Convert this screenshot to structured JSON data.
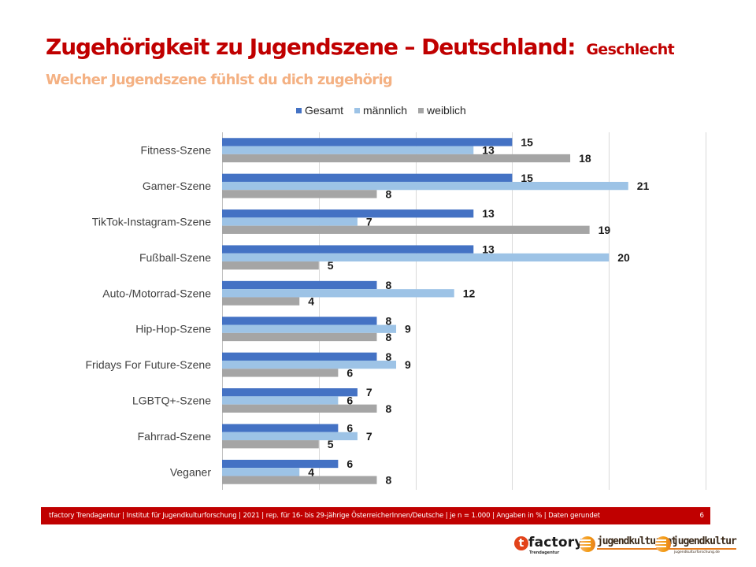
{
  "slide": {
    "title": "Zugehörigkeit zu Jugendszene – Deutschland:",
    "title_suffix": "Geschlecht",
    "subtitle": "Welcher Jugendszene fühlst du dich zugehörig",
    "footer_text": "tfactory Trendagentur | Institut für Jugendkulturforschung | 2021 | rep. für 16- bis 29-jährige ÖsterreicherInnen/Deutsche | je n = 1.000 | Angaben in % | Daten gerundet",
    "page_number": "6",
    "colors": {
      "title": "#C00000",
      "subtitle": "#F4B183",
      "footer_bg": "#C00000"
    }
  },
  "logos": {
    "tfactory": {
      "initial": "t",
      "name": "factory",
      "tagline": "Trendagentur"
    },
    "jugendkultur_at": {
      "name": "jugendkultur.at"
    },
    "jugendkultur_de": {
      "name": "jugendkultur",
      "tagline": "jugendkulturforschung.de"
    }
  },
  "chart_data": {
    "type": "bar",
    "orientation": "horizontal",
    "title": "",
    "xlabel": "",
    "ylabel": "",
    "xlim": [
      0,
      25
    ],
    "x_gridlines": [
      0,
      5,
      10,
      15,
      20,
      25
    ],
    "grid": true,
    "x_tick_labels_visible": false,
    "legend_position": "top",
    "categories": [
      "Fitness-Szene",
      "Gamer-Szene",
      "TikTok-Instagram-Szene",
      "Fußball-Szene",
      "Auto-/Motorrad-Szene",
      "Hip-Hop-Szene",
      "Fridays For Future-Szene",
      "LGBTQ+-Szene",
      "Fahrrad-Szene",
      "Veganer"
    ],
    "series": [
      {
        "name": "Gesamt",
        "color": "#4472C4",
        "values": [
          15,
          15,
          13,
          13,
          8,
          8,
          8,
          7,
          6,
          6
        ]
      },
      {
        "name": "männlich",
        "color": "#9DC3E6",
        "values": [
          13,
          21,
          7,
          20,
          12,
          9,
          9,
          6,
          7,
          4
        ]
      },
      {
        "name": "weiblich",
        "color": "#A5A5A5",
        "values": [
          18,
          8,
          19,
          5,
          4,
          8,
          6,
          8,
          5,
          8
        ]
      }
    ]
  }
}
